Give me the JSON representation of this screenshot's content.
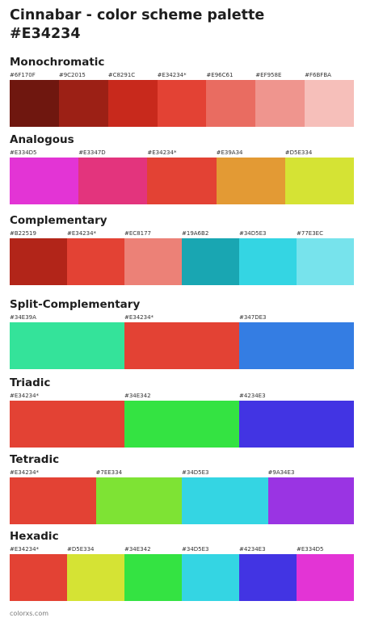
{
  "title_line1": "Cinnabar - color scheme palette",
  "title_line2": "#E34234",
  "footer": "colorxs.com",
  "sections": [
    {
      "title": "Monochromatic",
      "swatches": [
        {
          "label": "#6F170F",
          "color": "#6F170F"
        },
        {
          "label": "#9C2015",
          "color": "#9C2015"
        },
        {
          "label": "#C8291C",
          "color": "#C8291C"
        },
        {
          "label": "#E34234*",
          "color": "#E34234"
        },
        {
          "label": "#E96C61",
          "color": "#E96C61"
        },
        {
          "label": "#EF958E",
          "color": "#EF958E"
        },
        {
          "label": "#F6BFBA",
          "color": "#F6BFBA"
        }
      ]
    },
    {
      "title": "Analogous",
      "swatches": [
        {
          "label": "#E334D5",
          "color": "#E334D5"
        },
        {
          "label": "#E3347D",
          "color": "#E3347D"
        },
        {
          "label": "#E34234*",
          "color": "#E34234"
        },
        {
          "label": "#E39A34",
          "color": "#E39A34"
        },
        {
          "label": "#D5E334",
          "color": "#D5E334"
        }
      ]
    },
    {
      "title": "Complementary",
      "swatches": [
        {
          "label": "#B22519",
          "color": "#B22519"
        },
        {
          "label": "#E34234*",
          "color": "#E34234"
        },
        {
          "label": "#EC8177",
          "color": "#EC8177"
        },
        {
          "label": "#19A6B2",
          "color": "#19A6B2"
        },
        {
          "label": "#34D5E3",
          "color": "#34D5E3"
        },
        {
          "label": "#77E3EC",
          "color": "#77E3EC"
        }
      ]
    },
    {
      "title": "Split-Complementary",
      "swatches": [
        {
          "label": "#34E39A",
          "color": "#34E39A"
        },
        {
          "label": "#E34234*",
          "color": "#E34234"
        },
        {
          "label": "#347DE3",
          "color": "#347DE3"
        }
      ]
    },
    {
      "title": "Triadic",
      "swatches": [
        {
          "label": "#E34234*",
          "color": "#E34234"
        },
        {
          "label": "#34E342",
          "color": "#34E342"
        },
        {
          "label": "#4234E3",
          "color": "#4234E3"
        }
      ]
    },
    {
      "title": "Tetradic",
      "swatches": [
        {
          "label": "#E34234*",
          "color": "#E34234"
        },
        {
          "label": "#7EE334",
          "color": "#7EE334"
        },
        {
          "label": "#34D5E3",
          "color": "#34D5E3"
        },
        {
          "label": "#9A34E3",
          "color": "#9A34E3"
        }
      ]
    },
    {
      "title": "Hexadic",
      "swatches": [
        {
          "label": "#E34234*",
          "color": "#E34234"
        },
        {
          "label": "#D5E334",
          "color": "#D5E334"
        },
        {
          "label": "#34E342",
          "color": "#34E342"
        },
        {
          "label": "#34D5E3",
          "color": "#34D5E3"
        },
        {
          "label": "#4234E3",
          "color": "#4234E3"
        },
        {
          "label": "#E334D5",
          "color": "#E334D5"
        }
      ]
    }
  ]
}
